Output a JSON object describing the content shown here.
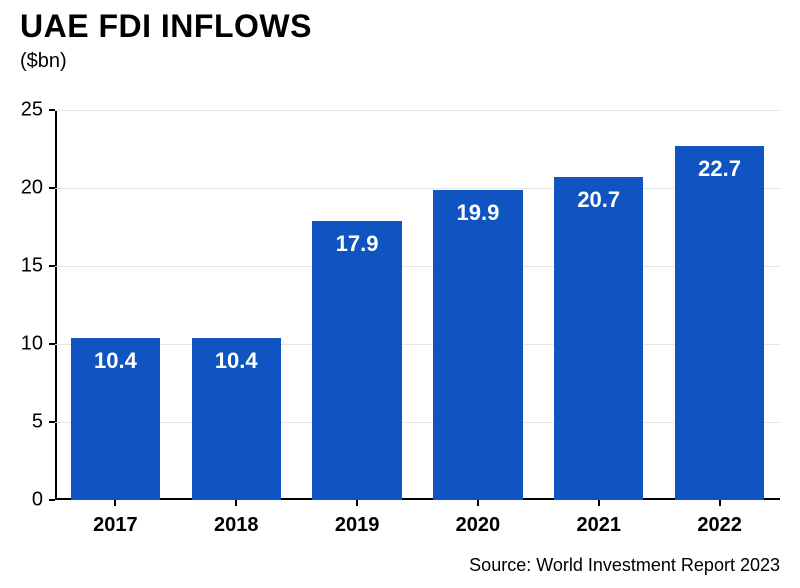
{
  "title": "UAE FDI INFLOWS",
  "subtitle": "($bn)",
  "source": "Source: World Investment Report 2023",
  "chart": {
    "type": "bar",
    "categories": [
      "2017",
      "2018",
      "2019",
      "2020",
      "2021",
      "2022"
    ],
    "values": [
      10.4,
      10.4,
      17.9,
      19.9,
      20.7,
      22.7
    ],
    "value_labels": [
      "10.4",
      "10.4",
      "17.9",
      "19.9",
      "20.7",
      "22.7"
    ],
    "ylim": [
      0,
      25
    ],
    "yticks": [
      0,
      5,
      10,
      15,
      20,
      25
    ],
    "bar_color": "#1054c2",
    "grid_color": "#e6e6e6",
    "axis_color": "#000000",
    "background_color": "#ffffff",
    "title_color": "#000000",
    "text_color": "#000000",
    "bar_label_color": "#ffffff",
    "title_fontsize": 32,
    "subtitle_fontsize": 20,
    "tick_fontsize": 20,
    "bar_label_fontsize": 22,
    "source_fontsize": 18,
    "bar_width_ratio": 0.74
  }
}
